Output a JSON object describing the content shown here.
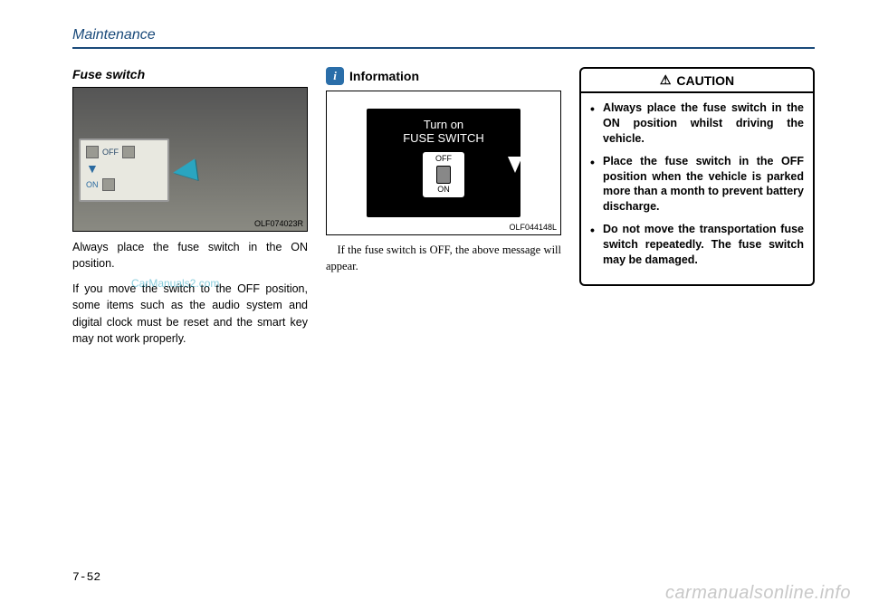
{
  "header": {
    "section": "Maintenance"
  },
  "col1": {
    "subheading": "Fuse switch",
    "img_code": "OLF074023R",
    "inset": {
      "off": "OFF",
      "on": "ON"
    },
    "para1": "Always place the fuse switch in the ON position.",
    "para2": "If you move the switch to the OFF position, some items such as the audio system and digital clock must be reset and the smart key may not work properly."
  },
  "col2": {
    "info_icon": "i",
    "info_title": "Information",
    "lcd_line1": "Turn on",
    "lcd_line2": "FUSE SWITCH",
    "lcd_off": "OFF",
    "lcd_on": "ON",
    "img_code": "OLF044148L",
    "para": "If the fuse switch is OFF, the above message will appear."
  },
  "caution": {
    "title": "CAUTION",
    "items": [
      "Always place the fuse switch in the ON position whilst driving the vehicle.",
      "Place the fuse switch in the OFF position when the vehicle is parked more than a month to prevent battery discharge.",
      "Do not move the transportation fuse switch repeatedly. The fuse switch may be damaged."
    ]
  },
  "page_number": "7-52",
  "watermark_bottom": "carmanualsonline.info",
  "watermark_mid": "CarManuals2.com"
}
